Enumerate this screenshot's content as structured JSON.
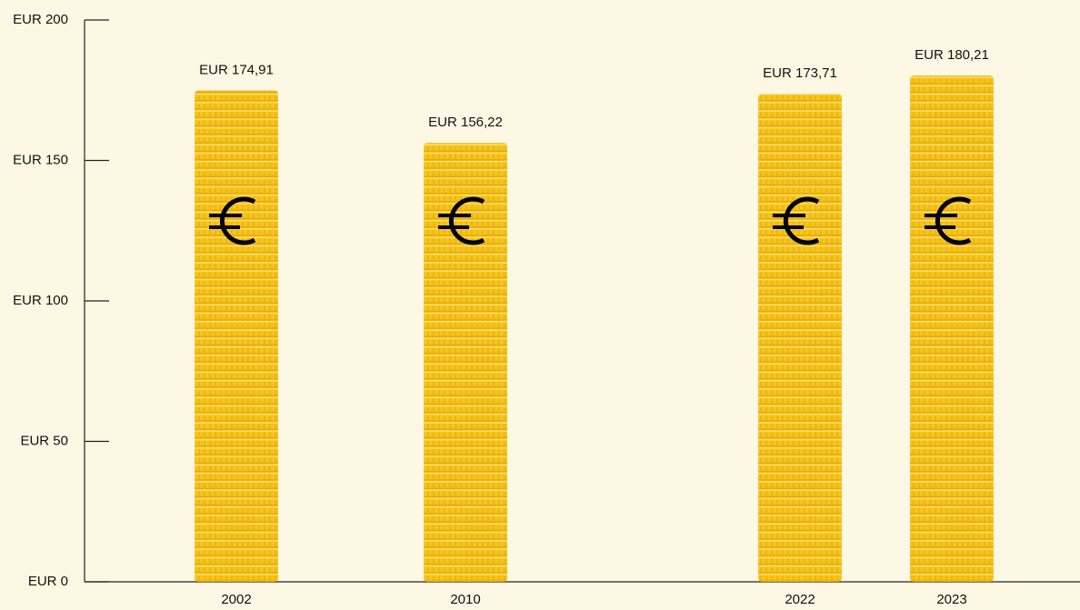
{
  "chart_data": {
    "type": "bar",
    "categories": [
      "2002",
      "2010",
      "2022",
      "2023"
    ],
    "values": [
      174.91,
      156.22,
      173.71,
      180.21
    ],
    "value_labels": [
      "EUR 174,91",
      "EUR 156,22",
      "EUR 173,71",
      "EUR 180,21"
    ],
    "color": "#f7c41a",
    "ylim": [
      0,
      200
    ],
    "yticks": [
      {
        "value": 0,
        "label": "EUR 0"
      },
      {
        "value": 50,
        "label": "EUR 50"
      },
      {
        "value": 100,
        "label": "EUR 100"
      },
      {
        "value": 150,
        "label": "EUR 150"
      },
      {
        "value": 200,
        "label": "EUR 200"
      }
    ]
  }
}
